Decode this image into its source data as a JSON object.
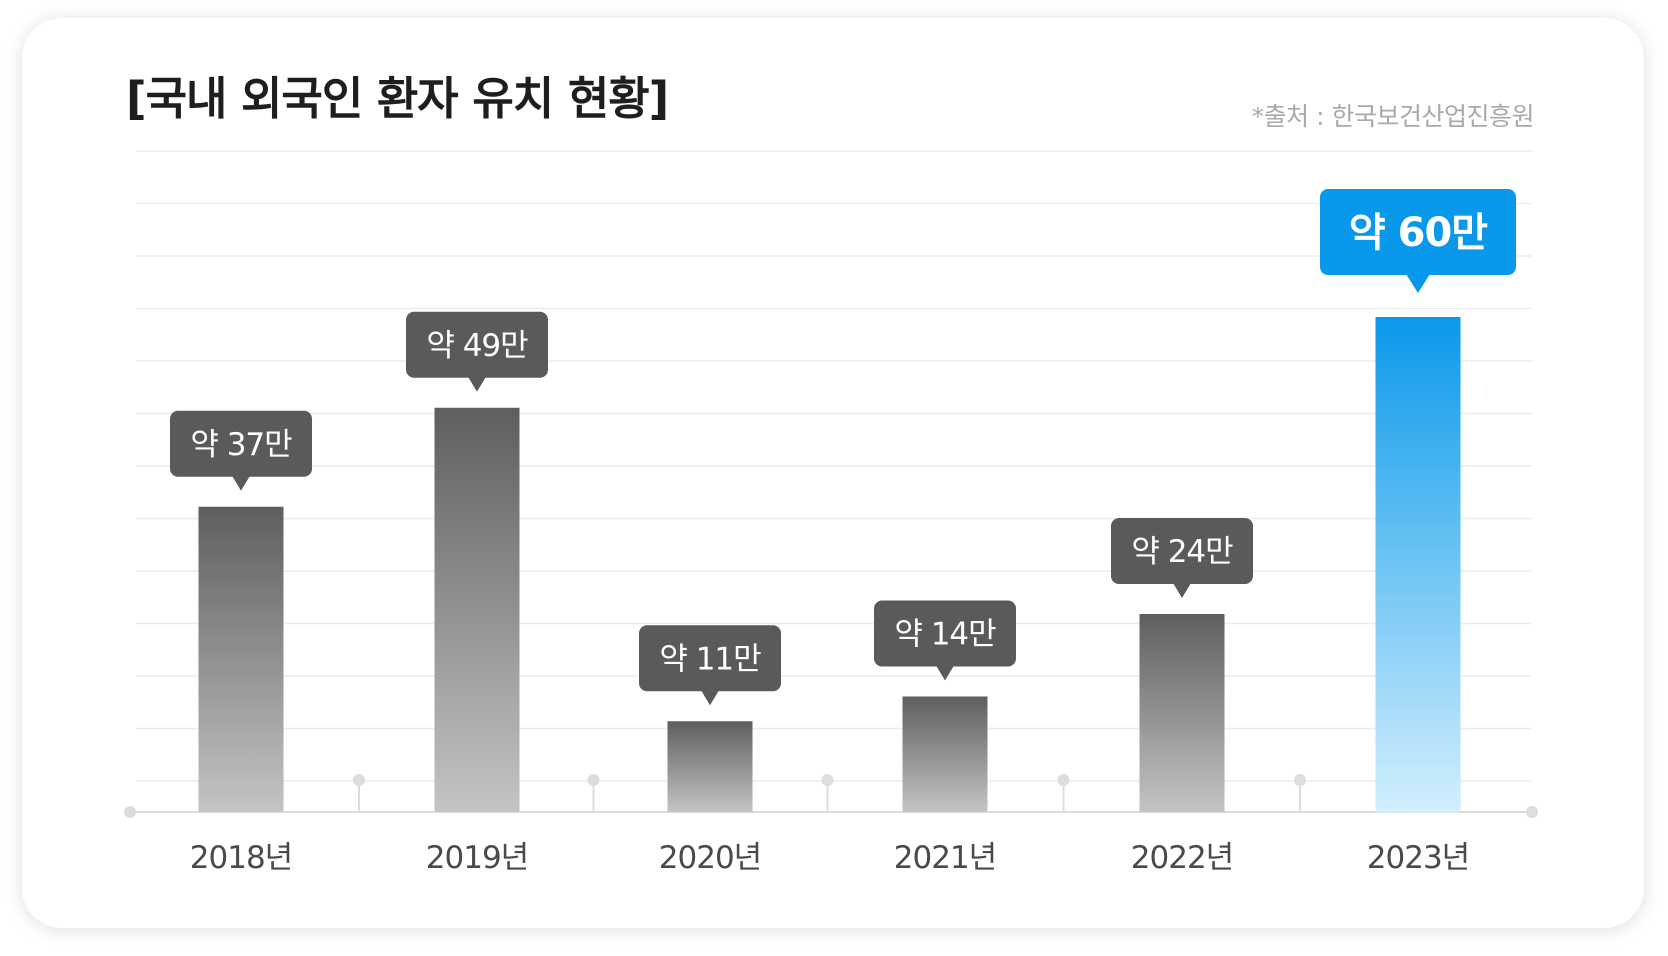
{
  "title": "[국내 외국인 환자 유치 현황]",
  "source": "*출처 : 한국보건산업진흥원",
  "colors": {
    "bar_gray_top": "#5e5e5e",
    "bar_gray_bottom": "#c4c4c4",
    "bar_blue_top": "#0a99ea",
    "bar_blue_bottom": "#d2effd",
    "label_gray": "#5a5a5a",
    "label_blue": "#0a99ea",
    "grid": "#ececec",
    "axis": "#dddddd"
  },
  "chart_data": {
    "type": "bar",
    "title": "[국내 외국인 환자 유치 현황]",
    "xlabel": "",
    "ylabel": "",
    "ylim": [
      0,
      65
    ],
    "grid": true,
    "categories": [
      "2018년",
      "2019년",
      "2020년",
      "2021년",
      "2022년",
      "2023년"
    ],
    "values": [
      37,
      49,
      11,
      14,
      24,
      60
    ],
    "data_labels": [
      "약 37만",
      "약 49만",
      "약 11만",
      "약 14만",
      "약 24만",
      "약 60만"
    ],
    "highlight_index": 5
  }
}
